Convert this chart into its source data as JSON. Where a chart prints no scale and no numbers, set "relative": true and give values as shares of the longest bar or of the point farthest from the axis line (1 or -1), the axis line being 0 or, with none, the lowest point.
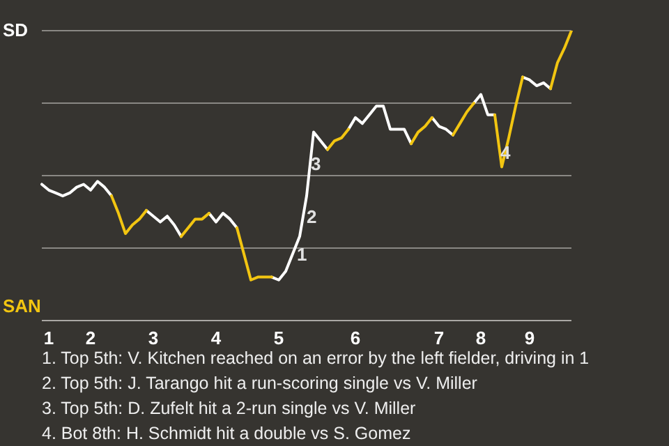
{
  "chart_data": {
    "type": "line",
    "relative": true,
    "categories": [
      null,
      "1",
      null,
      null,
      null,
      null,
      null,
      "2",
      null,
      null,
      null,
      null,
      null,
      null,
      null,
      null,
      "3",
      null,
      null,
      null,
      null,
      null,
      null,
      null,
      null,
      "4",
      null,
      null,
      null,
      null,
      null,
      null,
      null,
      null,
      "5",
      null,
      null,
      null,
      null,
      null,
      null,
      null,
      null,
      null,
      null,
      "6",
      null,
      null,
      null,
      null,
      null,
      null,
      null,
      null,
      null,
      null,
      null,
      "7",
      null,
      null,
      null,
      null,
      null,
      "8",
      null,
      null,
      null,
      null,
      null,
      null,
      "9",
      null,
      null,
      null,
      null,
      null,
      null
    ],
    "series": [
      {
        "color": "#ffffff",
        "values": [
          0.47,
          0.45,
          0.44,
          0.43,
          0.44,
          0.46,
          0.47,
          0.45,
          0.48,
          0.46,
          0.43,
          null,
          null,
          null,
          null,
          0.38,
          0.36,
          0.34,
          0.36,
          0.33,
          0.29,
          null,
          null,
          null,
          0.37,
          0.34,
          0.37,
          0.35,
          0.32,
          null,
          null,
          null,
          null,
          0.15,
          0.14,
          0.17,
          0.23,
          0.29,
          0.43,
          0.65,
          0.62,
          0.59,
          null,
          null,
          0.66,
          0.7,
          0.68,
          0.71,
          0.74,
          0.74,
          0.66,
          0.66,
          0.66,
          0.61,
          null,
          null,
          0.7,
          0.67,
          0.66,
          0.64,
          null,
          null,
          0.75,
          0.78,
          0.71,
          0.71,
          null,
          null,
          null,
          0.84,
          0.83,
          0.81,
          0.82,
          0.8,
          null,
          null,
          null
        ]
      },
      {
        "color": "#f2c511",
        "values": [
          null,
          null,
          null,
          null,
          null,
          null,
          null,
          null,
          null,
          null,
          0.43,
          0.37,
          0.3,
          0.33,
          0.35,
          0.38,
          null,
          null,
          null,
          null,
          0.29,
          0.32,
          0.35,
          0.35,
          0.37,
          null,
          null,
          null,
          0.32,
          0.23,
          0.14,
          0.15,
          0.15,
          0.15,
          null,
          null,
          null,
          null,
          null,
          null,
          null,
          0.59,
          0.62,
          0.63,
          0.66,
          null,
          null,
          null,
          null,
          null,
          null,
          null,
          null,
          0.61,
          0.65,
          0.67,
          0.7,
          null,
          null,
          0.64,
          0.68,
          0.72,
          0.75,
          null,
          null,
          0.71,
          0.53,
          0.63,
          0.74,
          0.84,
          null,
          null,
          null,
          0.8,
          0.89,
          0.94,
          1
        ]
      }
    ],
    "grid": "y",
    "legend": false,
    "marker": "none",
    "line_style": "solid",
    "annotations": [
      "SD",
      "SAN",
      "1",
      "2",
      "3",
      "4",
      "1. Top 5th: V. Kitchen reached on an error by the left fielder, driving in 1",
      "2. Top 5th: J. Tarango hit a run-scoring single vs V. Miller",
      "3. Top 5th: D. Zufelt hit a 2-run single vs V. Miller",
      "4. Bot 8th: H. Schmidt hit a double vs S. Gomez"
    ]
  }
}
